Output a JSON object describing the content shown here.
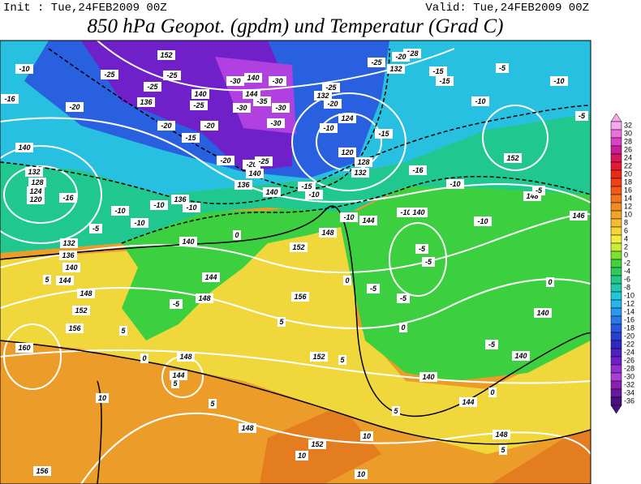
{
  "header": {
    "init": "Init : Tue,24FEB2009 00Z",
    "valid": "Valid: Tue,24FEB2009 00Z",
    "title": "850 hPa Geopot. (gpdm) und Temperatur (Grad C)"
  },
  "colorbar": {
    "ticks": [
      32,
      30,
      28,
      26,
      24,
      22,
      20,
      18,
      16,
      14,
      12,
      10,
      8,
      6,
      4,
      2,
      0,
      -2,
      -4,
      -6,
      -8,
      -10,
      -12,
      -14,
      -16,
      -18,
      -20,
      -22,
      -24,
      -26,
      -28,
      -30,
      -32,
      -34,
      -36
    ],
    "colors": [
      "#f6a8ee",
      "#ec70dc",
      "#dc40c8",
      "#c82098",
      "#d81858",
      "#e41830",
      "#ec2818",
      "#f04018",
      "#f45818",
      "#f47420",
      "#f08c20",
      "#f0a428",
      "#f4bc30",
      "#f4d438",
      "#f4ec40",
      "#c8ec38",
      "#80e030",
      "#40d040",
      "#30c860",
      "#20c888",
      "#20c8b0",
      "#20c8d8",
      "#28b4ec",
      "#2898f0",
      "#2878e8",
      "#2858e0",
      "#2840d0",
      "#3028c0",
      "#5020c0",
      "#7020c8",
      "#9030d0",
      "#a840d8",
      "#8820b0",
      "#6818a0",
      "#481080"
    ]
  },
  "contour_labels": [
    "-10",
    "-16",
    "-20",
    "-25",
    "-25",
    "-25",
    "152",
    "136",
    "140",
    "-25",
    "-20",
    "-20",
    "-15",
    "-30",
    "140",
    "-30",
    "144",
    "-30",
    "-35",
    "-30",
    "-30",
    "-25",
    "132",
    "-20",
    "124",
    "-10",
    "-15",
    "120",
    "128",
    "132",
    "-16",
    "-10",
    "-5",
    "-10",
    "-10",
    "-5",
    "152",
    "148",
    "-5",
    "146",
    "128",
    "132",
    "-15",
    "-15",
    "-20",
    "-25",
    "140",
    "132",
    "128",
    "124",
    "120",
    "-16",
    "-10",
    "-10",
    "-5",
    "132",
    "136",
    "140",
    "144",
    "148",
    "152",
    "156",
    "160",
    "5",
    "140",
    "-10",
    "-10",
    "136",
    "136",
    "140",
    "-20",
    "-20",
    "-25",
    "-15",
    "-10",
    "140",
    "144",
    "148",
    "-5",
    "0",
    "152",
    "156",
    "5",
    "-10",
    "144",
    "148",
    "-10",
    "140",
    "-5",
    "-5",
    "-10",
    "0",
    "-5",
    "-5",
    "0",
    "-5",
    "140",
    "140",
    "0",
    "152",
    "5",
    "148",
    "144",
    "5",
    "0",
    "5",
    "5",
    "148",
    "152",
    "10",
    "10",
    "140",
    "5",
    "144",
    "148",
    "5",
    "0",
    "156",
    "10",
    "10"
  ]
}
